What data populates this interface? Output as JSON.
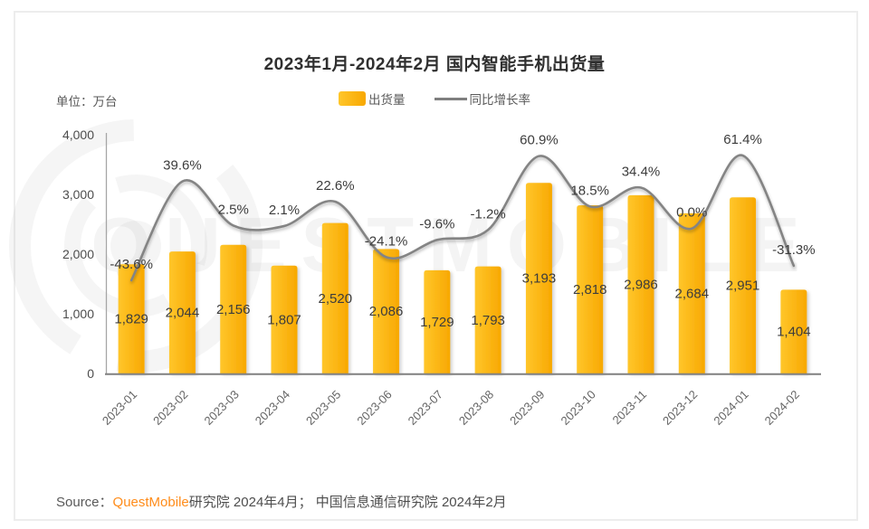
{
  "chart": {
    "title": "2023年1月-2024年2月 国内智能手机出货量",
    "unit_label": "单位：万台",
    "legend": {
      "bars": "出货量",
      "line": "同比增长率"
    },
    "source": {
      "prefix": "Source：",
      "brand": "QuestMobile",
      "suffix": "研究院 2024年4月； 中国信息通信研究院 2024年2月"
    }
  },
  "chart_data": {
    "type": "bar",
    "title": "2023年1月-2024年2月 国内智能手机出货量",
    "ylabel": "万台",
    "categories": [
      "2023-01",
      "2023-02",
      "2023-03",
      "2023-04",
      "2023-05",
      "2023-06",
      "2023-07",
      "2023-08",
      "2023-09",
      "2023-10",
      "2023-11",
      "2023-12",
      "2024-01",
      "2024-02"
    ],
    "series": [
      {
        "name": "出货量",
        "type": "bar",
        "values": [
          1829,
          2044,
          2156,
          1807,
          2520,
          2086,
          1729,
          1793,
          3193,
          2818,
          2986,
          2684,
          2951,
          1404
        ],
        "color_start": "#FFC62B",
        "color_end": "#F8A801"
      },
      {
        "name": "同比增长率",
        "type": "line",
        "values_pct": [
          -43.6,
          39.6,
          2.5,
          2.1,
          22.6,
          -24.1,
          -9.6,
          -1.2,
          60.9,
          18.5,
          34.4,
          0.0,
          61.4,
          -31.3
        ],
        "color": "#848484"
      }
    ],
    "y_axis": {
      "min": 0,
      "max": 4000,
      "ticks": [
        0,
        1000,
        2000,
        3000,
        4000
      ]
    },
    "grid": false,
    "legend_position": "top",
    "watermark": "QUESTMOBILE",
    "label_color": "#3c3c3c",
    "axis_color": "#808080"
  }
}
